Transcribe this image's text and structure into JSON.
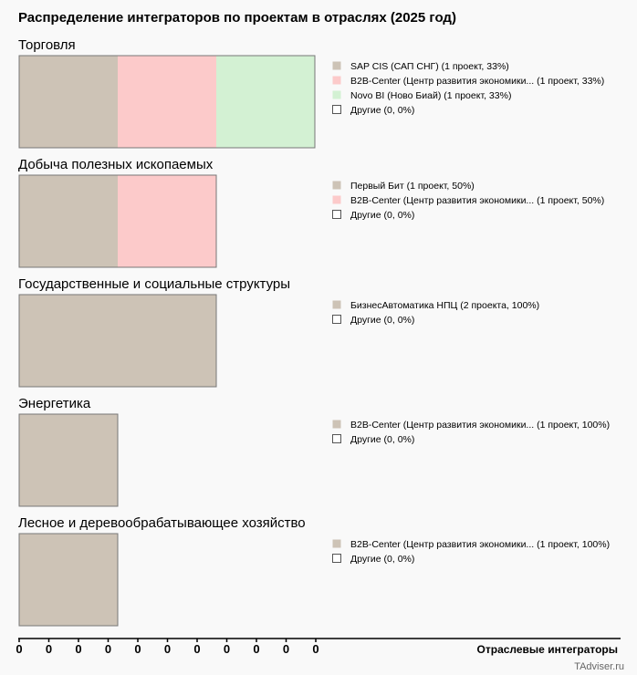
{
  "chart_data": {
    "type": "bar",
    "title": "Распределение интеграторов по проектам в отраслях (2025 год)",
    "xlabel": "Отраслевые интеграторы",
    "x_ticks": [
      "0",
      "0",
      "0",
      "0",
      "0",
      "0",
      "0",
      "0",
      "0",
      "0",
      "0"
    ],
    "units_per_max": 3,
    "sections": [
      {
        "name": "Торговля",
        "segments": [
          {
            "name": "SAP CIS (САП СНГ)",
            "projects": 1,
            "percent": 33,
            "color": "#cdc3b6",
            "legend": "SAP CIS (САП СНГ) (1 проект, 33%)"
          },
          {
            "name": "B2B-Center (Центр развития экономики...",
            "projects": 1,
            "percent": 33,
            "color": "#fccaca",
            "legend": "B2B-Center (Центр развития экономики... (1 проект, 33%)"
          },
          {
            "name": "Novo BI (Ново Биай)",
            "projects": 1,
            "percent": 33,
            "color": "#d3f1d3",
            "legend": "Novo BI (Ново Биай) (1 проект, 33%)"
          }
        ],
        "other_legend": "Другие (0, 0%)"
      },
      {
        "name": "Добыча полезных ископаемых",
        "segments": [
          {
            "name": "Первый Бит",
            "projects": 1,
            "percent": 50,
            "color": "#cdc3b6",
            "legend": "Первый Бит (1 проект, 50%)"
          },
          {
            "name": "B2B-Center (Центр развития экономики...",
            "projects": 1,
            "percent": 50,
            "color": "#fccaca",
            "legend": "B2B-Center (Центр развития экономики... (1 проект, 50%)"
          }
        ],
        "other_legend": "Другие (0, 0%)"
      },
      {
        "name": "Государственные и социальные структуры",
        "segments": [
          {
            "name": "БизнесАвтоматика НПЦ",
            "projects": 2,
            "percent": 100,
            "color": "#cdc3b6",
            "legend": "БизнесАвтоматика НПЦ (2 проекта, 100%)"
          }
        ],
        "other_legend": "Другие (0, 0%)"
      },
      {
        "name": "Энергетика",
        "segments": [
          {
            "name": "B2B-Center (Центр развития экономики...",
            "projects": 1,
            "percent": 100,
            "color": "#cdc3b6",
            "legend": "B2B-Center (Центр развития экономики... (1 проект, 100%)"
          }
        ],
        "other_legend": "Другие (0, 0%)"
      },
      {
        "name": "Лесное и деревообрабатывающее хозяйство",
        "segments": [
          {
            "name": "B2B-Center (Центр развития экономики...",
            "projects": 1,
            "percent": 100,
            "color": "#cdc3b6",
            "legend": "B2B-Center (Центр развития экономики... (1 проект, 100%)"
          }
        ],
        "other_legend": "Другие (0, 0%)"
      }
    ]
  },
  "watermark": "TAdviser.ru",
  "colors": {
    "background": "#f9f9f9",
    "border": "#777777",
    "other_swatch": "#ffffff"
  }
}
